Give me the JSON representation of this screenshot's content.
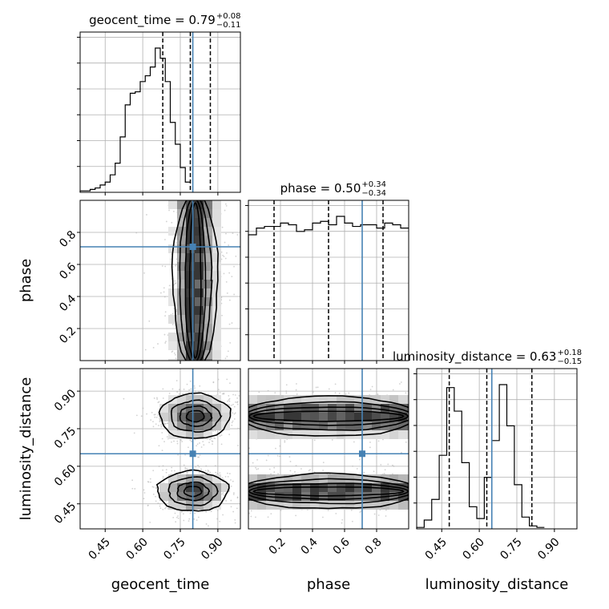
{
  "chart_data": {
    "type": "corner",
    "colors": {
      "truth": "#4682b4",
      "hist": "#000000",
      "quantile": "#000000",
      "grid": "#b0b0b0",
      "points": "#b4b4b4"
    },
    "parameters": [
      "geocent_time",
      "phase",
      "luminosity_distance"
    ],
    "ranges": [
      [
        0.35,
        0.99
      ],
      [
        0.0,
        1.0
      ],
      [
        0.35,
        0.99
      ]
    ],
    "truths": [
      0.8,
      0.71,
      0.65
    ],
    "titles": [
      {
        "name": "geocent_time = 0.79",
        "plus": "+0.08",
        "minus": "−0.11"
      },
      {
        "name": "phase = 0.50",
        "plus": "+0.34",
        "minus": "−0.34"
      },
      {
        "name": "luminosity_distance = 0.63",
        "plus": "+0.18",
        "minus": "−0.15"
      }
    ],
    "quantiles": [
      [
        0.68,
        0.79,
        0.87
      ],
      [
        0.16,
        0.5,
        0.84
      ],
      [
        0.48,
        0.63,
        0.81
      ]
    ],
    "x_ticks": [
      {
        "values": [
          0.45,
          0.6,
          0.75,
          0.9
        ],
        "labels": [
          "0.45",
          "0.60",
          "0.75",
          "0.90"
        ]
      },
      {
        "values": [
          0.2,
          0.4,
          0.6,
          0.8
        ],
        "labels": [
          "0.2",
          "0.4",
          "0.6",
          "0.8"
        ]
      },
      {
        "values": [
          0.45,
          0.6,
          0.75,
          0.9
        ],
        "labels": [
          "0.45",
          "0.60",
          "0.75",
          "0.90"
        ]
      }
    ],
    "y_ticks": [
      null,
      {
        "values": [
          0.2,
          0.4,
          0.6,
          0.8
        ],
        "labels": [
          "0.2",
          "0.4",
          "0.6",
          "0.8"
        ]
      },
      {
        "values": [
          0.45,
          0.6,
          0.75,
          0.9
        ],
        "labels": [
          "0.45",
          "0.60",
          "0.75",
          "0.90"
        ]
      }
    ],
    "xlabels": [
      "geocent_time",
      "phase",
      "luminosity_distance"
    ],
    "ylabels": [
      "",
      "phase",
      "luminosity_distance"
    ],
    "histograms": [
      {
        "edges_from": 0.35,
        "bin_width": 0.02,
        "values": [
          0.01,
          0.01,
          0.02,
          0.03,
          0.05,
          0.07,
          0.12,
          0.2,
          0.38,
          0.6,
          0.68,
          0.69,
          0.76,
          0.8,
          0.86,
          0.99,
          0.92,
          0.76,
          0.48,
          0.33,
          0.17,
          0.07
        ]
      },
      {
        "edges_from": 0.0,
        "bin_width": 0.05,
        "values": [
          0.75,
          0.79,
          0.8,
          0.8,
          0.82,
          0.81,
          0.77,
          0.78,
          0.82,
          0.83,
          0.81,
          0.86,
          0.82,
          0.8,
          0.81,
          0.81,
          0.79,
          0.82,
          0.81,
          0.79
        ]
      },
      {
        "edges_from": 0.35,
        "bin_width": 0.03,
        "values": [
          0.01,
          0.06,
          0.2,
          0.5,
          0.96,
          0.8,
          0.45,
          0.15,
          0.07,
          0.35,
          0.6,
          0.98,
          0.7,
          0.3,
          0.08,
          0.02,
          0.01
        ]
      }
    ]
  }
}
